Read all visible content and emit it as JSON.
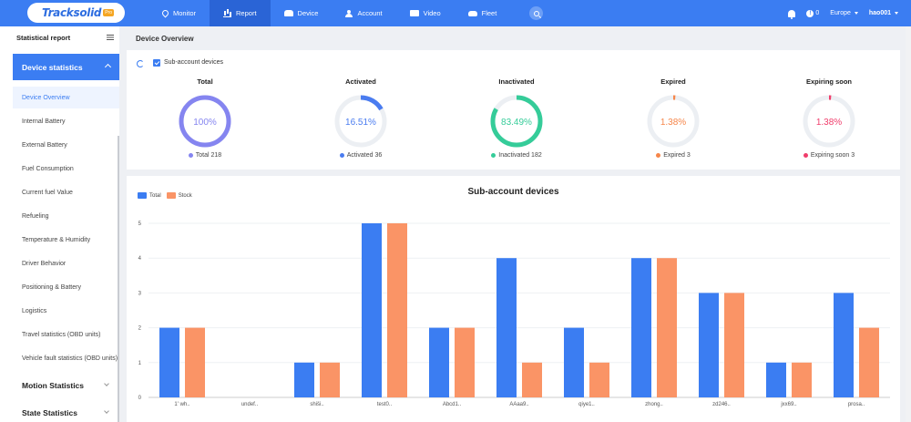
{
  "brand": {
    "name": "Tracksolid",
    "badge": "Pro"
  },
  "nav": [
    {
      "key": "monitor",
      "label": "Monitor",
      "icon": "pin-icon"
    },
    {
      "key": "report",
      "label": "Report",
      "icon": "chart-icon",
      "active": true
    },
    {
      "key": "device",
      "label": "Device",
      "icon": "device-icon"
    },
    {
      "key": "account",
      "label": "Account",
      "icon": "account-icon"
    },
    {
      "key": "video",
      "label": "Video",
      "icon": "video-icon"
    },
    {
      "key": "fleet",
      "label": "Fleet",
      "icon": "fleet-icon"
    }
  ],
  "topright": {
    "notifications": "0",
    "region": "Europe",
    "user": "hao001"
  },
  "sidebar": {
    "header": "Statistical report",
    "active_group": "Device statistics",
    "items": [
      "Device Overview",
      "Internal Battery",
      "External Battery",
      "Fuel Consumption",
      "Current fuel Value",
      "Refueling",
      "Temperature & Humidity",
      "Driver Behavior",
      "Positioning & Battery",
      "Logistics",
      "Travel statistics (OBD units)",
      "Vehicle fault statistics (OBD units)"
    ],
    "active_item": 0,
    "groups": [
      "Motion Statistics",
      "State Statistics"
    ]
  },
  "page_title": "Device Overview",
  "overview": {
    "checkbox_label": "Sub-account devices",
    "checked": true,
    "stats": [
      {
        "key": "total",
        "title": "Total",
        "percent": 100,
        "percent_label": "100%",
        "legend": "Total 218",
        "color": "#8585f0"
      },
      {
        "key": "activated",
        "title": "Activated",
        "percent": 16.51,
        "percent_label": "16.51%",
        "legend": "Activated 36",
        "color": "#4a7cf0"
      },
      {
        "key": "inactivated",
        "title": "Inactivated",
        "percent": 83.49,
        "percent_label": "83.49%",
        "legend": "Inactivated 182",
        "color": "#35cc99"
      },
      {
        "key": "expired",
        "title": "Expired",
        "percent": 1.38,
        "percent_label": "1.38%",
        "legend": "Expired 3",
        "color": "#f6864a"
      },
      {
        "key": "expiring",
        "title": "Expiring soon",
        "percent": 1.38,
        "percent_label": "1.38%",
        "legend": "Expiring soon 3",
        "color": "#f03d6b"
      }
    ]
  },
  "chart_data": {
    "type": "bar",
    "title": "Sub-account devices",
    "categories": [
      "1' wh..",
      "undef..",
      "shiši..",
      "test0..",
      "Abcd1..",
      "AAaa9..",
      "qiye1..",
      "zhong..",
      "zd246..",
      "jxx69..",
      "prosa.."
    ],
    "series": [
      {
        "name": "Total",
        "color": "#3b7df2",
        "values": [
          2,
          0,
          1,
          5,
          2,
          4,
          2,
          4,
          3,
          1,
          3
        ]
      },
      {
        "name": "Stock",
        "color": "#fa9466",
        "values": [
          2,
          0,
          1,
          5,
          2,
          1,
          1,
          4,
          3,
          1,
          2
        ]
      }
    ],
    "yticks": [
      0,
      1,
      2,
      3,
      4,
      5
    ],
    "ylim": [
      0,
      5
    ],
    "grid": true,
    "legend_position": "top-left"
  }
}
